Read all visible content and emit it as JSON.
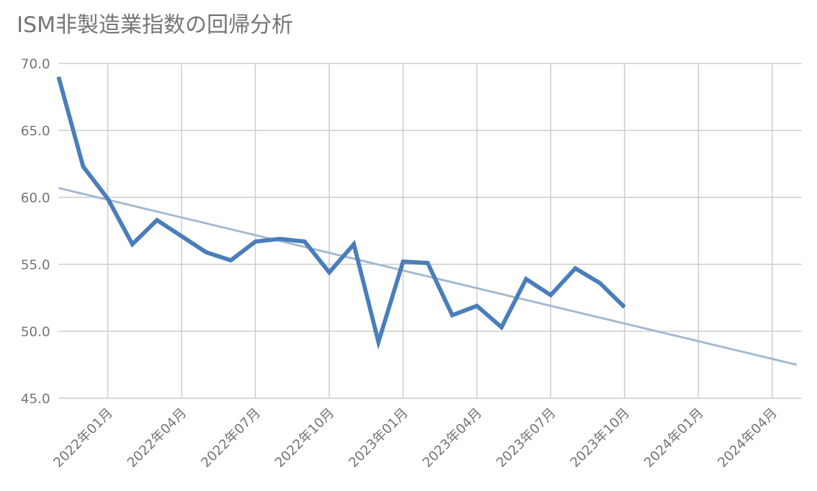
{
  "chart_data": {
    "type": "line",
    "title": "ISM非製造業指数の回帰分析",
    "series": [
      {
        "name": "ISM非製造業指数",
        "color": "#4a7ebb",
        "x": [
          "2021-11",
          "2021-12",
          "2022-01",
          "2022-02",
          "2022-03",
          "2022-04",
          "2022-05",
          "2022-06",
          "2022-07",
          "2022-08",
          "2022-09",
          "2022-10",
          "2022-11",
          "2022-12",
          "2023-01",
          "2023-02",
          "2023-03",
          "2023-04",
          "2023-05",
          "2023-06",
          "2023-07",
          "2023-08",
          "2023-09",
          "2023-10"
        ],
        "values": [
          69.0,
          62.3,
          59.9,
          56.5,
          58.3,
          57.1,
          55.9,
          55.3,
          56.7,
          56.9,
          56.7,
          54.4,
          56.5,
          49.2,
          55.2,
          55.1,
          51.2,
          51.9,
          50.3,
          53.9,
          52.7,
          54.7,
          53.6,
          51.8
        ]
      },
      {
        "name": "回帰",
        "color": "#a3b8d1",
        "x": [
          "2021-11",
          "2024-05"
        ],
        "values": [
          60.7,
          47.5
        ]
      }
    ],
    "xlim": [
      "2021-11",
      "2024-05"
    ],
    "xticks": [
      {
        "value": "2022-01",
        "label": "2022年01月"
      },
      {
        "value": "2022-04",
        "label": "2022年04月"
      },
      {
        "value": "2022-07",
        "label": "2022年07月"
      },
      {
        "value": "2022-10",
        "label": "2022年10月"
      },
      {
        "value": "2023-01",
        "label": "2023年01月"
      },
      {
        "value": "2023-04",
        "label": "2023年04月"
      },
      {
        "value": "2023-07",
        "label": "2023年07月"
      },
      {
        "value": "2023-10",
        "label": "2023年10月"
      },
      {
        "value": "2024-01",
        "label": "2024年01月"
      },
      {
        "value": "2024-04",
        "label": "2024年04月"
      }
    ],
    "ylim": [
      45,
      70
    ],
    "yticks": [
      {
        "value": 45,
        "label": "45.0"
      },
      {
        "value": 50,
        "label": "50.0"
      },
      {
        "value": 55,
        "label": "55.0"
      },
      {
        "value": 60,
        "label": "60.0"
      },
      {
        "value": 65,
        "label": "65.0"
      },
      {
        "value": 70,
        "label": "70.0"
      }
    ],
    "grid": true
  }
}
